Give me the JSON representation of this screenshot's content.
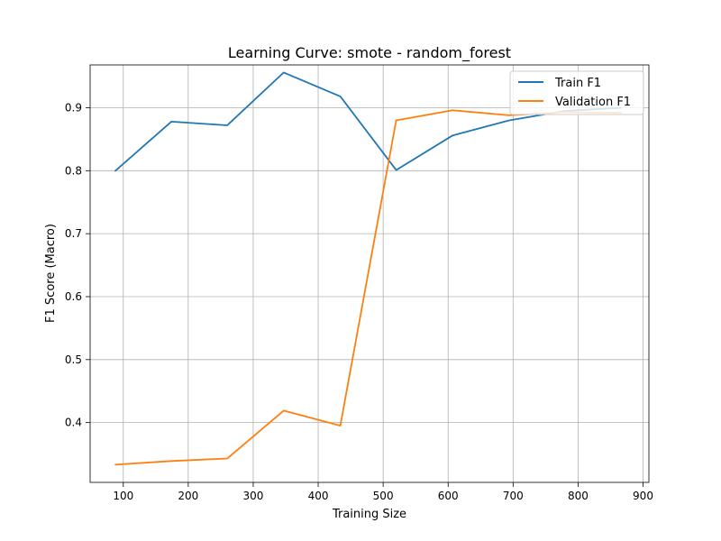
{
  "chart_data": {
    "type": "line",
    "title": "Learning Curve: smote - random_forest",
    "xlabel": "Training Size",
    "ylabel": "F1 Score (Macro)",
    "xlim": [
      49,
      909
    ],
    "ylim": [
      0.305,
      0.968
    ],
    "xticks": [
      100,
      200,
      300,
      400,
      500,
      600,
      700,
      800,
      900
    ],
    "xtick_labels": [
      "100",
      "200",
      "300",
      "400",
      "500",
      "600",
      "700",
      "800",
      "900"
    ],
    "yticks": [
      0.4,
      0.5,
      0.6,
      0.7,
      0.8,
      0.9
    ],
    "ytick_labels": [
      "0.4",
      "0.5",
      "0.6",
      "0.7",
      "0.8",
      "0.9"
    ],
    "grid": true,
    "legend_position": "top-right",
    "x": [
      87,
      174,
      260,
      347,
      434,
      520,
      607,
      694,
      780,
      867
    ],
    "series": [
      {
        "name": "Train F1",
        "color": "#1f77b4",
        "values": [
          0.799,
          0.878,
          0.872,
          0.956,
          0.918,
          0.801,
          0.856,
          0.88,
          0.895,
          0.9
        ]
      },
      {
        "name": "Validation F1",
        "color": "#ff7f0e",
        "values": [
          0.333,
          0.339,
          0.343,
          0.419,
          0.395,
          0.88,
          0.896,
          0.888,
          0.893,
          0.892
        ]
      }
    ]
  }
}
